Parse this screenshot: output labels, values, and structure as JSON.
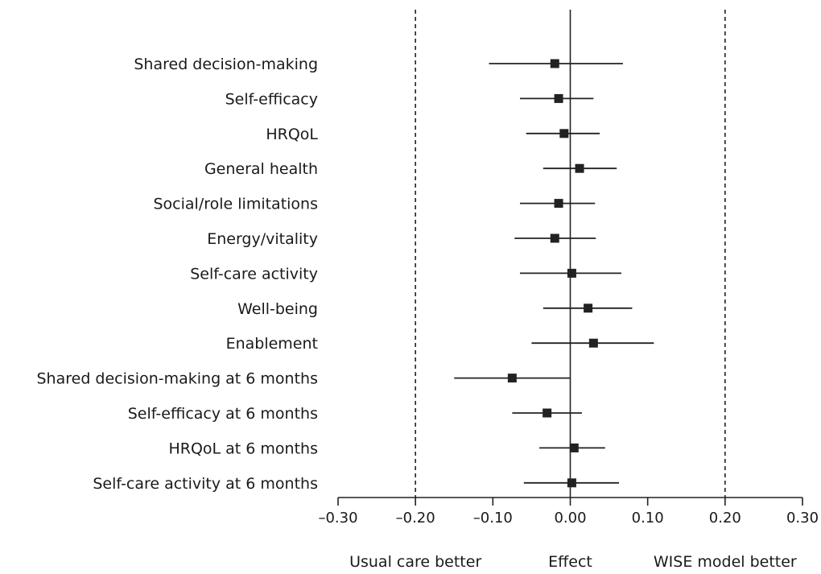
{
  "chart_data": {
    "type": "forest",
    "categories": [
      "Shared decision-making",
      "Self-efficacy",
      "HRQoL",
      "General health",
      "Social/role limitations",
      "Energy/vitality",
      "Self-care activity",
      "Well-being",
      "Enablement",
      "Shared decision-making at 6 months",
      "Self-efficacy at 6 months",
      "HRQoL at 6 months",
      "Self-care activity at 6 months"
    ],
    "estimates": [
      -0.02,
      -0.015,
      -0.008,
      0.012,
      -0.015,
      -0.02,
      0.002,
      0.023,
      0.03,
      -0.075,
      -0.03,
      0.005,
      0.002
    ],
    "ci_lower": [
      -0.105,
      -0.065,
      -0.057,
      -0.035,
      -0.065,
      -0.072,
      -0.065,
      -0.035,
      -0.05,
      -0.15,
      -0.075,
      -0.04,
      -0.06
    ],
    "ci_upper": [
      0.068,
      0.03,
      0.038,
      0.06,
      0.032,
      0.033,
      0.066,
      0.08,
      0.108,
      0.0,
      0.015,
      0.045,
      0.063
    ],
    "x_ticks": [
      "–0.30",
      "–0.20",
      "–0.10",
      "0.00",
      "0.10",
      "0.20",
      "0.30"
    ],
    "x_tick_values": [
      -0.3,
      -0.2,
      -0.1,
      0.0,
      0.1,
      0.2,
      0.3
    ],
    "xlim": [
      -0.3,
      0.3
    ],
    "reference_lines": [
      -0.2,
      0.2
    ],
    "null_line": 0.0,
    "x_annotations": [
      "Usual care better",
      "Effect",
      "WISE model better"
    ],
    "grid": false,
    "colors": {
      "marker": "#222222",
      "line": "#222222"
    }
  }
}
